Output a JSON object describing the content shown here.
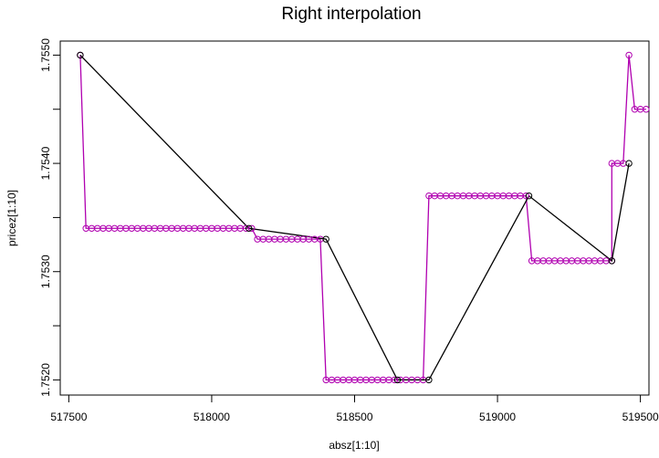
{
  "chart_data": {
    "type": "line",
    "title": "Right interpolation",
    "xlabel": "absz[1:10]",
    "ylabel": "pricez[1:10]",
    "xlim": [
      517470,
      519530
    ],
    "ylim": [
      1.75186,
      1.75513
    ],
    "x_ticks": [
      517500,
      518000,
      518500,
      519000,
      519500
    ],
    "x_tick_labels": [
      "517500",
      "518000",
      "518500",
      "519000",
      "519500"
    ],
    "y_ticks": [
      1.752,
      1.7525,
      1.753,
      1.7535,
      1.754,
      1.7545,
      1.755
    ],
    "y_tick_labels": [
      "1.7520",
      "",
      "1.7530",
      "",
      "1.7540",
      "",
      "1.7550"
    ],
    "grid": false,
    "series": [
      {
        "color": "#000000",
        "line": true,
        "points_from": "original"
      },
      {
        "color": "#b000b0",
        "line": true,
        "points_from": "interpolated"
      }
    ],
    "original": {
      "x": [
        517540,
        518130,
        518400,
        518650,
        518760,
        519110,
        519400,
        519460
      ],
      "y": [
        1.755,
        1.7534,
        1.7533,
        1.752,
        1.752,
        1.7537,
        1.7531,
        1.754
      ]
    },
    "interpolated_runs": [
      {
        "from": 517540,
        "to": 517540,
        "step": 0,
        "y": 1.755
      },
      {
        "from": 517560,
        "to": 518140,
        "step": 20,
        "y": 1.7534
      },
      {
        "from": 518160,
        "to": 518380,
        "step": 20,
        "y": 1.7533
      },
      {
        "from": 518400,
        "to": 518740,
        "step": 20,
        "y": 1.752
      },
      {
        "from": 518760,
        "to": 519100,
        "step": 20,
        "y": 1.7537
      },
      {
        "from": 519120,
        "to": 519400,
        "step": 20,
        "y": 1.7531
      },
      {
        "from": 519400,
        "to": 519440,
        "step": 20,
        "y": 1.754
      },
      {
        "from": 519460,
        "to": 519460,
        "step": 0,
        "y": 1.755
      },
      {
        "from": 519480,
        "to": 519520,
        "step": 20,
        "y": 1.7545
      }
    ]
  }
}
